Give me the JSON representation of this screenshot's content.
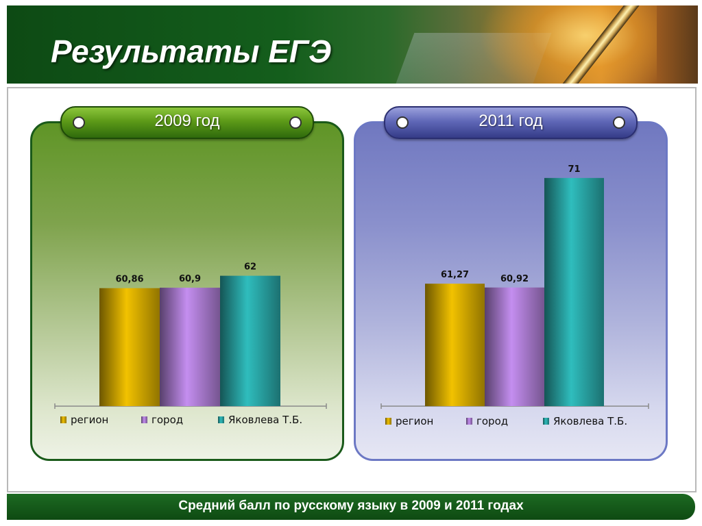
{
  "header": {
    "title": "Результаты ЕГЭ"
  },
  "footer": {
    "text": "Средний балл по русскому языку в 2009 и 2011 годах"
  },
  "chart_data": [
    {
      "type": "bar",
      "title": "2009 год",
      "categories": [
        "регион",
        "город",
        "Яковлева Т.Б."
      ],
      "values": [
        60.86,
        60.9,
        62
      ],
      "value_labels": [
        "60,86",
        "60,9",
        "62"
      ],
      "colors": [
        "#f2c200",
        "#c48ef0",
        "#2fbdbd"
      ],
      "legend_position": "bottom",
      "grid": false
    },
    {
      "type": "bar",
      "title": "2011 год",
      "categories": [
        "регион",
        "город",
        "Яковлева Т.Б."
      ],
      "values": [
        61.27,
        60.92,
        71
      ],
      "value_labels": [
        "61,27",
        "60,92",
        "71"
      ],
      "colors": [
        "#f2c200",
        "#c48ef0",
        "#2fbdbd"
      ],
      "legend_position": "bottom",
      "grid": false
    }
  ]
}
